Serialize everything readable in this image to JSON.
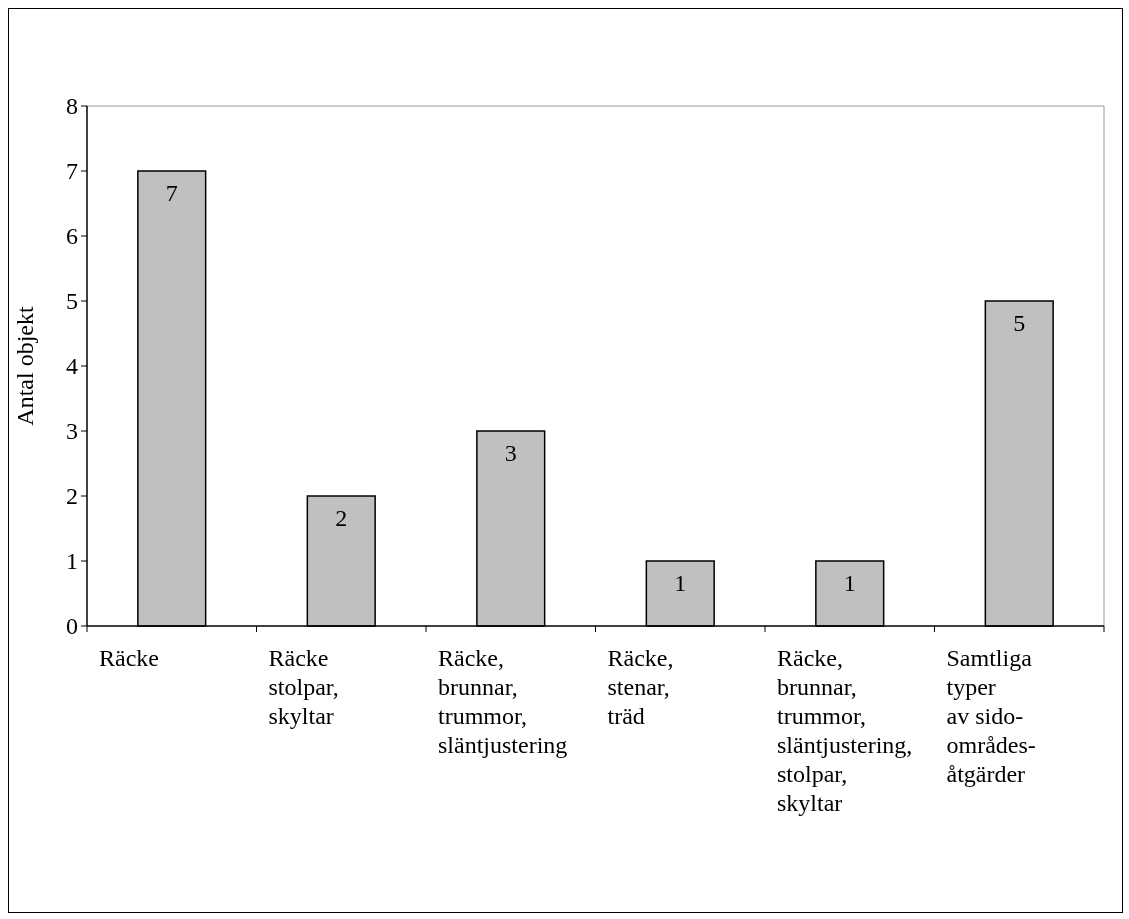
{
  "chart_data": {
    "type": "bar",
    "ylabel": "Antal objekt",
    "categories": [
      "Räcke",
      "Räcke\nstolpar,\nskyltar",
      "Räcke,\nbrunnar,\ntrummor,\nsläntjustering",
      "Räcke,\nstenar,\nträd",
      "Räcke,\nbrunnar,\ntrummor,\nsläntjustering,\nstolpar,\nskyltar",
      "Samtliga\ntyper\nav sido-\nområdes-\nåtgärder"
    ],
    "values": [
      7,
      2,
      3,
      1,
      1,
      5
    ],
    "color": "#c0c0c0",
    "ylim": [
      0,
      8
    ],
    "yticks": [
      0,
      1,
      2,
      3,
      4,
      5,
      6,
      7,
      8
    ],
    "grid": false,
    "data_labels": true
  }
}
